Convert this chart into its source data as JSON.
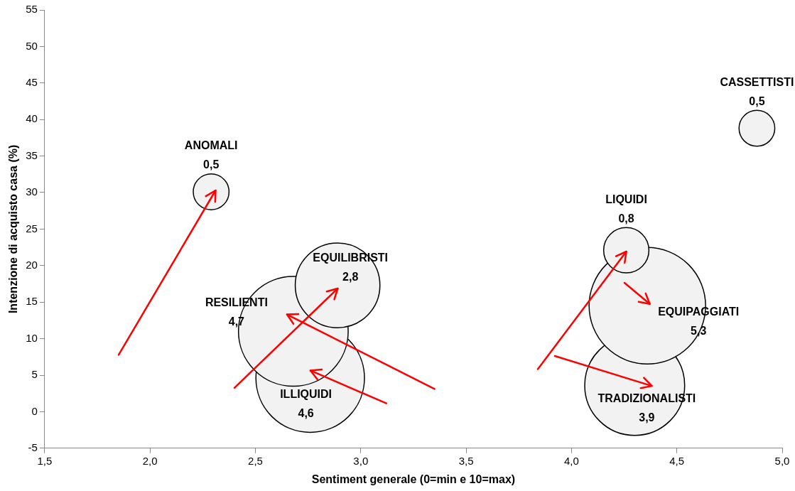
{
  "chart_data": {
    "type": "bubble",
    "xlabel": "Sentiment generale (0=min e 10=max)",
    "ylabel": "Intenzione di acquisto casa (%)",
    "xlim": [
      1.5,
      5.0
    ],
    "xticks": [
      {
        "value": 1.5,
        "label": "1,5"
      },
      {
        "value": 2.0,
        "label": "2,0"
      },
      {
        "value": 2.5,
        "label": "2,5"
      },
      {
        "value": 3.0,
        "label": "3,0"
      },
      {
        "value": 3.5,
        "label": "3,5"
      },
      {
        "value": 4.0,
        "label": "4,0"
      },
      {
        "value": 4.5,
        "label": "4,5"
      },
      {
        "value": 5.0,
        "label": "5,0"
      }
    ],
    "ylim": [
      -5,
      55
    ],
    "yticks": [
      -5,
      0,
      5,
      10,
      15,
      20,
      25,
      30,
      35,
      40,
      45,
      50,
      55
    ],
    "grid": false,
    "legend": false,
    "series": [
      {
        "name": "ANOMALI",
        "color": "#f2f2f2",
        "x": [
          2.29
        ],
        "values": [
          30.1
        ],
        "sizes": [
          0.5
        ],
        "value_labels": [
          "0,5"
        ]
      },
      {
        "name": "CASSETTISTI",
        "color": "#f2f2f2",
        "x": [
          4.88
        ],
        "values": [
          38.8
        ],
        "sizes": [
          0.5
        ],
        "value_labels": [
          "0,5"
        ]
      },
      {
        "name": "LIQUIDI",
        "color": "#f2f2f2",
        "x": [
          4.26
        ],
        "values": [
          22.1
        ],
        "sizes": [
          0.8
        ],
        "value_labels": [
          "0,8"
        ]
      },
      {
        "name": "EQUILIBRISTI",
        "color": "#f2f2f2",
        "x": [
          2.89
        ],
        "values": [
          17.3
        ],
        "sizes": [
          2.8
        ],
        "value_labels": [
          "2,8"
        ]
      },
      {
        "name": "RESILIENTI",
        "color": "#f2f2f2",
        "x": [
          2.68
        ],
        "values": [
          11.0
        ],
        "sizes": [
          4.7
        ],
        "value_labels": [
          "4,7"
        ]
      },
      {
        "name": "ILLIQUIDI",
        "color": "#f2f2f2",
        "x": [
          2.76
        ],
        "values": [
          4.6
        ],
        "sizes": [
          4.6
        ],
        "value_labels": [
          "4,6"
        ]
      },
      {
        "name": "EQUIPAGGIATI",
        "color": "#f2f2f2",
        "x": [
          4.36
        ],
        "values": [
          14.5
        ],
        "sizes": [
          5.3
        ],
        "value_labels": [
          "5,3"
        ]
      },
      {
        "name": "TRADIZIONALISTI",
        "color": "#f2f2f2",
        "x": [
          4.3
        ],
        "values": [
          3.6
        ],
        "sizes": [
          3.9
        ],
        "value_labels": [
          "3,9"
        ]
      }
    ]
  }
}
